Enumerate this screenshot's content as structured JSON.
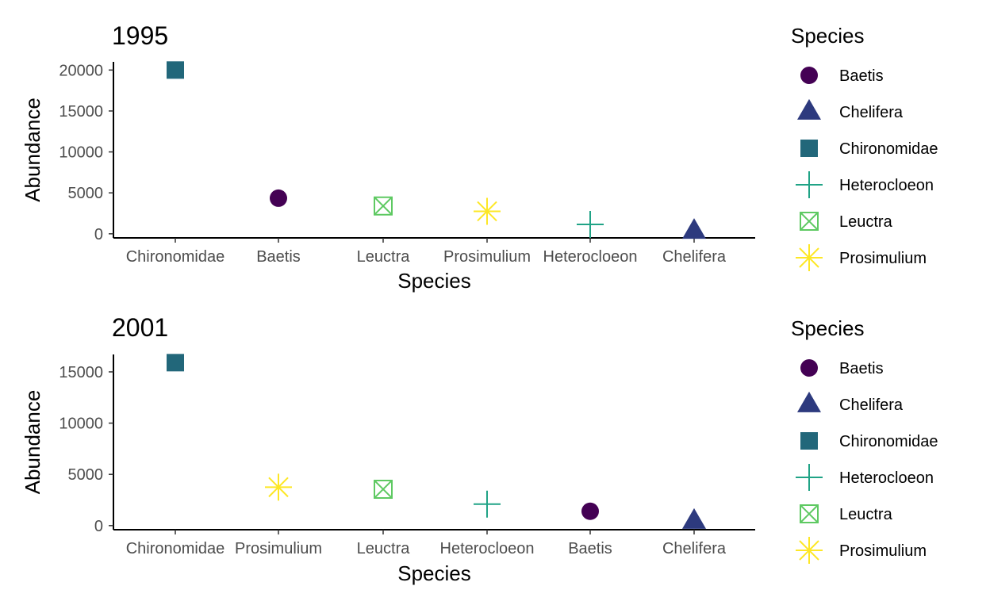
{
  "legend": {
    "title": "Species",
    "species": [
      "Baetis",
      "Chelifera",
      "Chironomidae",
      "Heterocloeon",
      "Leuctra",
      "Prosimulium"
    ]
  },
  "species_style": {
    "Baetis": {
      "shape": "circle",
      "color": "#440154"
    },
    "Chelifera": {
      "shape": "triangle",
      "color": "#2d3a7e"
    },
    "Chironomidae": {
      "shape": "square",
      "color": "#22677a"
    },
    "Heterocloeon": {
      "shape": "plus",
      "color": "#20a386"
    },
    "Leuctra": {
      "shape": "square-cross",
      "color": "#5ec962"
    },
    "Prosimulium": {
      "shape": "asterisk",
      "color": "#fde725"
    }
  },
  "chart_data": [
    {
      "type": "scatter",
      "title": "1995",
      "xlabel": "Species",
      "ylabel": "Abundance",
      "categories": [
        "Chironomidae",
        "Baetis",
        "Leuctra",
        "Prosimulium",
        "Heterocloeon",
        "Chelifera"
      ],
      "values": [
        20000,
        4350,
        3400,
        2750,
        1150,
        350
      ],
      "yticks": [
        0,
        5000,
        10000,
        15000,
        20000
      ],
      "ylim": [
        -500,
        21000
      ],
      "grid": false,
      "legend_position": "right"
    },
    {
      "type": "scatter",
      "title": "2001",
      "xlabel": "Species",
      "ylabel": "Abundance",
      "categories": [
        "Chironomidae",
        "Prosimulium",
        "Leuctra",
        "Heterocloeon",
        "Baetis",
        "Chelifera"
      ],
      "values": [
        15900,
        3750,
        3550,
        2100,
        1400,
        450
      ],
      "yticks": [
        0,
        5000,
        10000,
        15000
      ],
      "ylim": [
        -400,
        16700
      ],
      "grid": false,
      "legend_position": "right"
    }
  ]
}
